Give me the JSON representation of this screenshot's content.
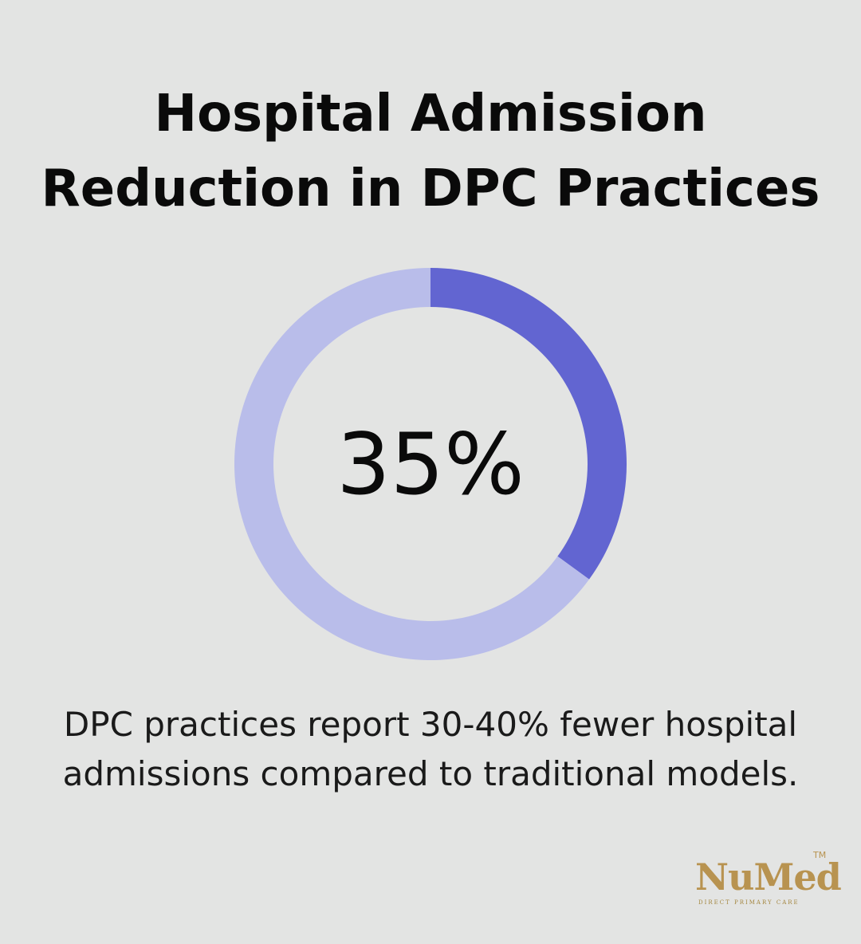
{
  "title": {
    "line1": "Hospital Admission",
    "line2": "Reduction in DPC Practices"
  },
  "chart_data": {
    "type": "pie",
    "variant": "donut",
    "value_percent": 35,
    "center_label": "35%",
    "slices": [
      {
        "value": 35,
        "color": "#6265d1"
      },
      {
        "value": 65,
        "color": "#b9bdea"
      }
    ],
    "start_angle": "top",
    "direction": "clockwise"
  },
  "caption": {
    "line1": "DPC practices report 30-40% fewer hospital",
    "line2": "admissions compared to traditional models."
  },
  "logo": {
    "wordmark": "NuMed",
    "trademark": "TM",
    "tagline": "DIRECT PRIMARY CARE"
  },
  "colors": {
    "background": "#e3e4e3",
    "accent": "#6265d1",
    "track": "#b9bdea",
    "logo_gold": "#b89350"
  }
}
